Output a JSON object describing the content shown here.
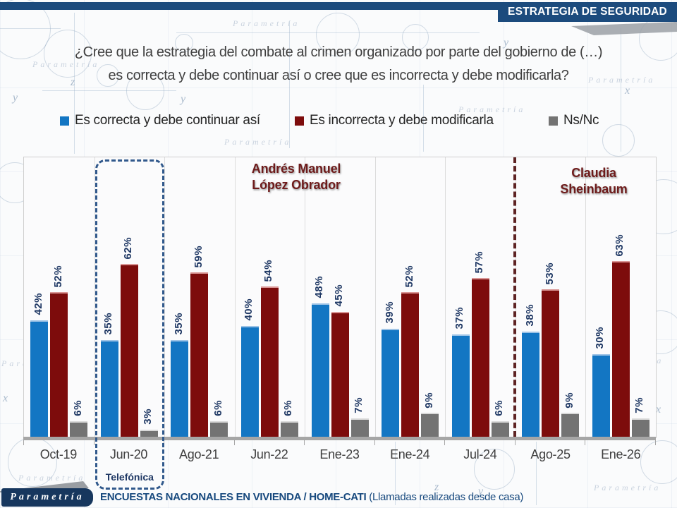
{
  "header": {
    "title": "ESTRATEGIA DE SEGURIDAD"
  },
  "question": {
    "line1": "¿Cree que la estrategia del combate al crimen organizado por parte del gobierno de (…)",
    "line2": "es correcta y debe continuar así o cree que es incorrecta y debe modificarla?"
  },
  "legend": [
    {
      "label": "Es correcta y debe continuar así",
      "color": "#1376C3"
    },
    {
      "label": "Es incorrecta y debe modificarla",
      "color": "#7D0C0C"
    },
    {
      "label": "Ns/Nc",
      "color": "#737373"
    }
  ],
  "chart_data": {
    "type": "bar",
    "title": "ESTRATEGIA DE SEGURIDAD",
    "categories": [
      "Oct-19",
      "Jun-20",
      "Ago-21",
      "Jun-22",
      "Ene-23",
      "Ene-24",
      "Jul-24",
      "Ago-25",
      "Ene-26"
    ],
    "series": [
      {
        "name": "Es correcta y debe continuar así",
        "color": "#1376C3",
        "cap_color": "#9DC3E6",
        "values": [
          42,
          35,
          35,
          40,
          48,
          39,
          37,
          38,
          30
        ]
      },
      {
        "name": "Es incorrecta y debe modificarla",
        "color": "#7D0C0C",
        "cap_color": "#D99594",
        "values": [
          52,
          62,
          59,
          54,
          45,
          52,
          57,
          53,
          63
        ]
      },
      {
        "name": "Ns/Nc",
        "color": "#737373",
        "cap_color": "#D9D9D9",
        "values": [
          6,
          3,
          6,
          6,
          7,
          9,
          6,
          9,
          7
        ]
      }
    ],
    "value_suffix": "%",
    "ylim": [
      0,
      100
    ],
    "grid": "vertical-category-separators",
    "legend_position": "top",
    "annotations": [
      {
        "lines": [
          "Andrés Manuel",
          "López Obrador"
        ],
        "color": "#6E1B1B"
      },
      {
        "lines": [
          "Claudia",
          "Sheinbaum"
        ],
        "color": "#6E1B1B"
      }
    ],
    "highlight": {
      "category": "Jun-20",
      "label": "Telefónica"
    },
    "separator_after_category": "Jul-24",
    "separator_color": "#5E2323"
  },
  "footer": {
    "logo": "Parametría",
    "source_bold": "ENCUESTAS NACIONALES EN VIVIENDA / HOME-CATI",
    "source_normal": "(Llamadas realizadas desde casa)"
  },
  "watermark": "Parametría"
}
